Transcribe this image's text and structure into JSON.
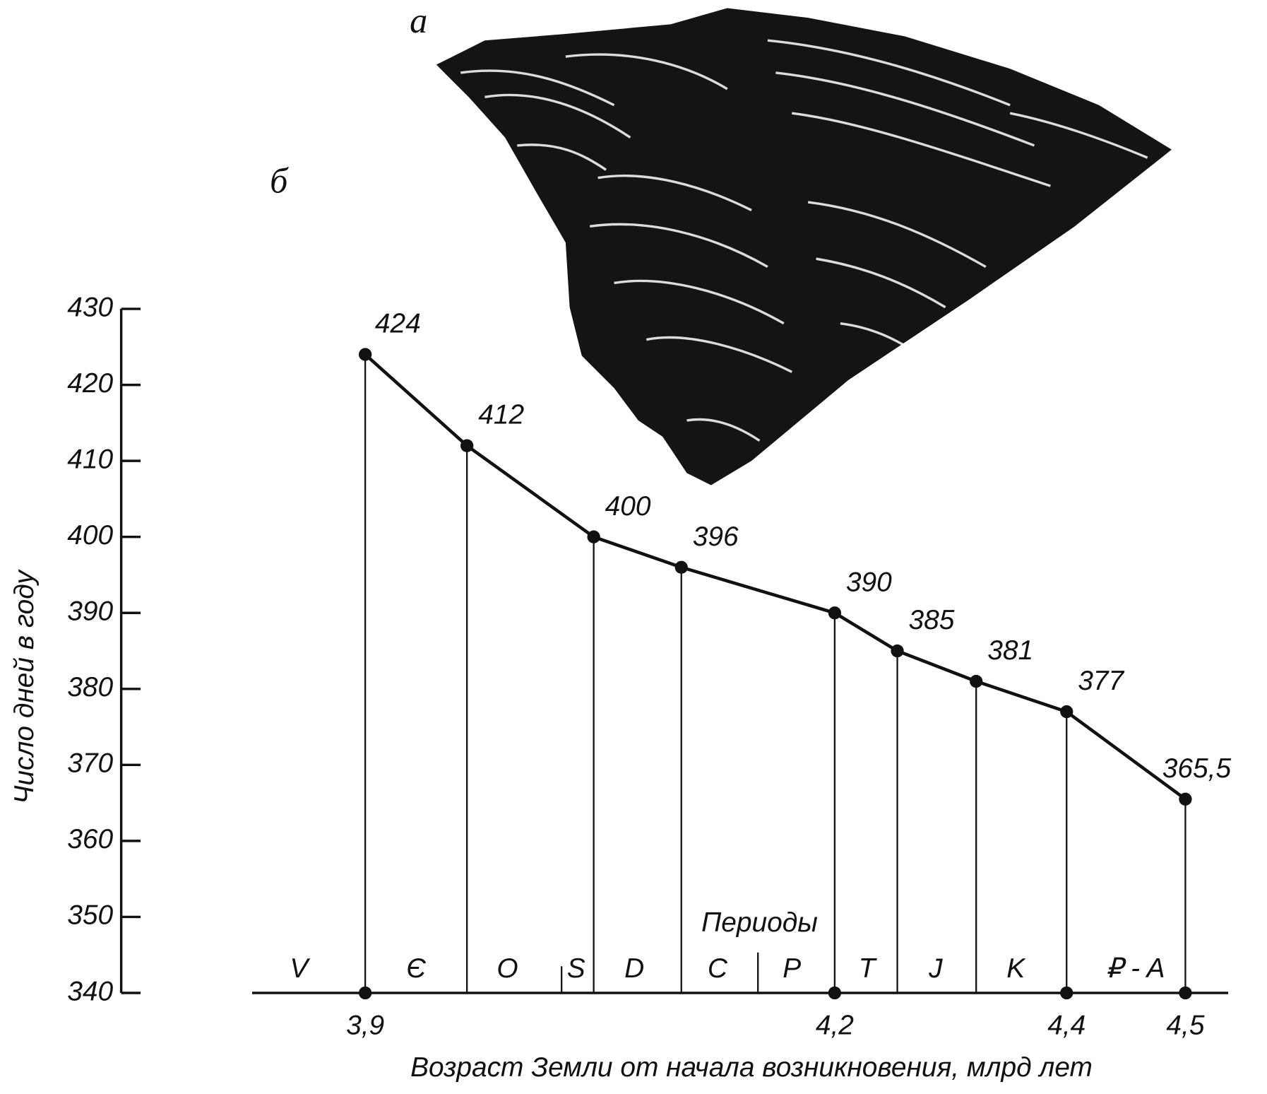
{
  "panel_labels": [
    "а",
    "б"
  ],
  "chart_data": {
    "type": "line",
    "y_label": "Число дней в году",
    "x_label": "Возраст Земли от начала возникновения,  млрд  лет",
    "x": [
      3.9,
      3.965,
      4.046,
      4.102,
      4.2,
      4.254,
      4.322,
      4.4,
      4.5
    ],
    "values": [
      424,
      412,
      400,
      396,
      390,
      385,
      381,
      377,
      365.5
    ],
    "value_labels": [
      "424",
      "412",
      "400",
      "396",
      "390",
      "385",
      "381",
      "377",
      "365,5"
    ],
    "color": "#111111",
    "xlim": [
      3.83,
      4.54
    ],
    "xticks": [
      {
        "value": 3.9,
        "label": "3,9"
      },
      {
        "value": 4.2,
        "label": "4,2"
      },
      {
        "value": 4.4,
        "label": "4,4"
      },
      {
        "value": 4.5,
        "label": "4,5"
      }
    ],
    "ylim": [
      340,
      430
    ],
    "yticks": [
      340,
      350,
      360,
      370,
      380,
      390,
      400,
      410,
      420,
      430
    ],
    "periods_title": "Периоды",
    "periods": [
      "V",
      "Є",
      "O",
      "S",
      "D",
      "C",
      "P",
      "T",
      "J",
      "K",
      "₽ - A"
    ]
  }
}
